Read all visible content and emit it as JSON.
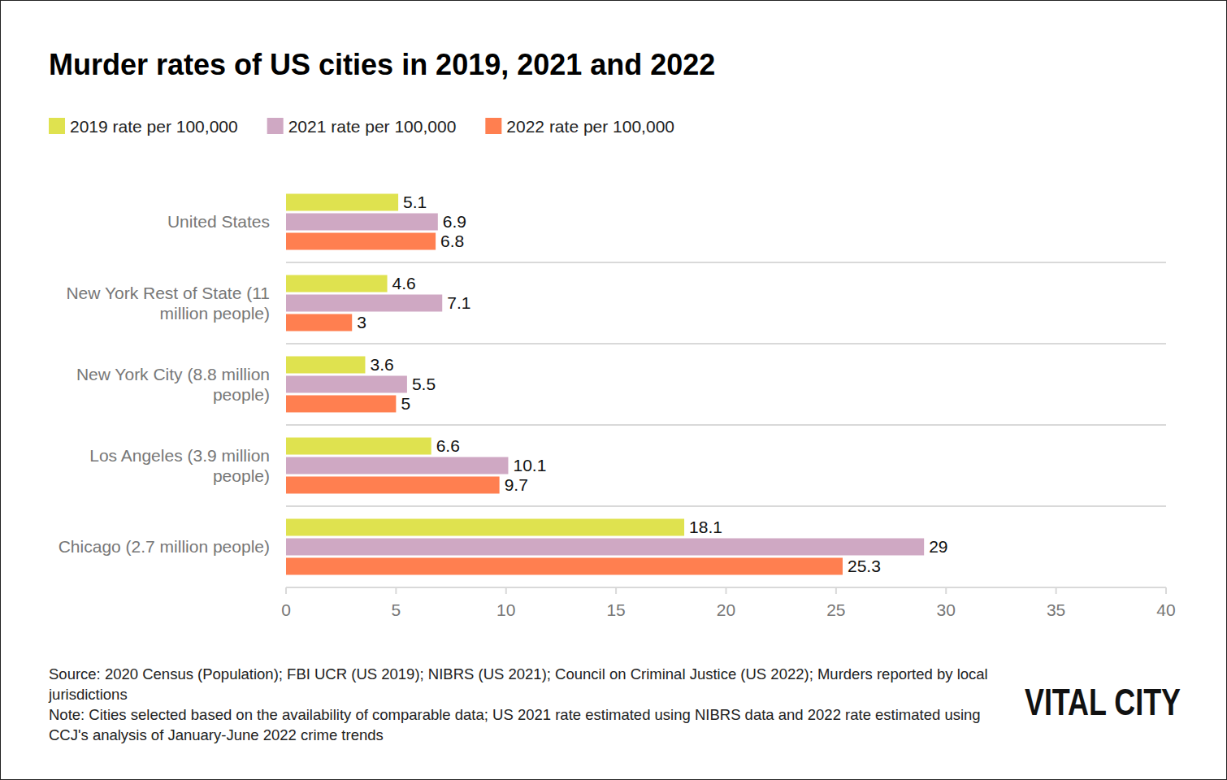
{
  "chart_data": {
    "type": "bar",
    "orientation": "horizontal",
    "title": "Murder rates of US cities in 2019, 2021 and 2022",
    "categories": [
      "United States",
      "New York Rest of State (11 million people)",
      "New York City (8.8 million people)",
      "Los Angeles (3.9 million people)",
      "Chicago (2.7 million people)"
    ],
    "series": [
      {
        "name": "2019 rate per 100,000",
        "color": "#dfe24f",
        "values": [
          5.1,
          4.6,
          3.6,
          6.6,
          18.1
        ]
      },
      {
        "name": "2021 rate per 100,000",
        "color": "#cfa8c3",
        "values": [
          6.9,
          7.1,
          5.5,
          10.1,
          29
        ]
      },
      {
        "name": "2022 rate per 100,000",
        "color": "#ff7f50",
        "values": [
          6.8,
          3,
          5,
          9.7,
          25.3
        ]
      }
    ],
    "xlim": [
      0,
      40
    ],
    "xticks": [
      0,
      5,
      10,
      15,
      20,
      25,
      30,
      35,
      40
    ],
    "data_labels": true,
    "legend": "top-left",
    "grid": false,
    "source": "Source: 2020 Census (Population); FBI UCR (US 2019); NIBRS (US 2021); Council on Criminal Justice (US 2022); Murders reported by local jurisdictions",
    "note": "Note: Cities selected based on the availability of comparable data; US 2021 rate estimated using NIBRS data and 2022 rate estimated using CCJ's analysis of January-June 2022 crime trends",
    "brand": "VITAL CITY"
  }
}
